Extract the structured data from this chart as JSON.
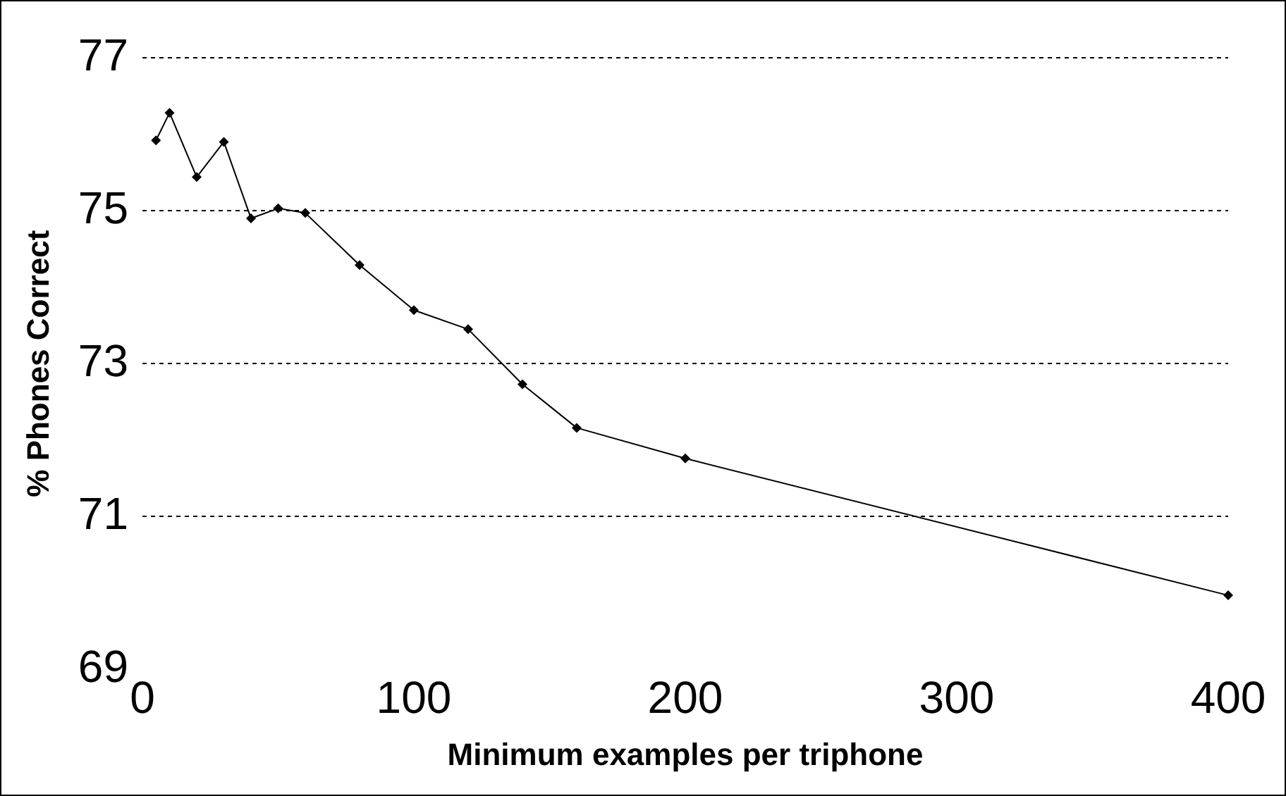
{
  "chart_data": {
    "type": "line",
    "xlabel": "Minimum examples per triphone",
    "ylabel": "% Phones Correct",
    "x": [
      5,
      10,
      20,
      30,
      40,
      50,
      60,
      80,
      100,
      120,
      140,
      160,
      200,
      400
    ],
    "series": [
      {
        "color": "#000000",
        "values": [
          75.92,
          76.28,
          75.44,
          75.9,
          74.9,
          75.03,
          74.97,
          74.29,
          73.7,
          73.45,
          72.73,
          72.16,
          71.76,
          69.97
        ]
      }
    ],
    "xlim": [
      0,
      400
    ],
    "xticks": [
      0,
      100,
      200,
      300,
      400
    ],
    "ylim": [
      69,
      77
    ],
    "yticks": [
      69,
      71,
      73,
      75,
      77
    ],
    "grid": "y",
    "marker": "diamond",
    "line_style": "solid",
    "legend": false
  }
}
